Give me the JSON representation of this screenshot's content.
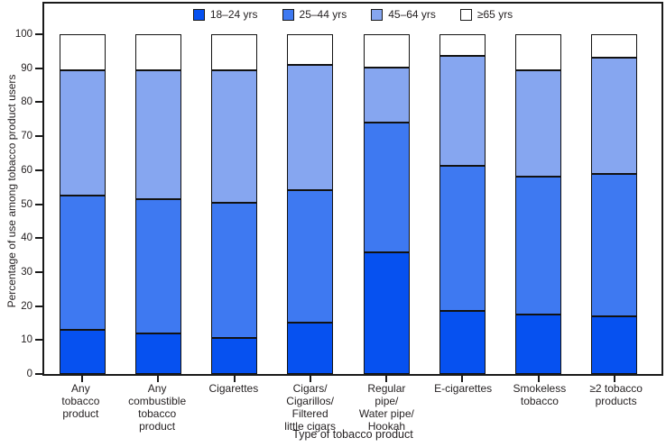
{
  "chart_data": {
    "type": "bar",
    "stacked": true,
    "title": "",
    "xlabel": "Type of tobacco product",
    "ylabel": "Percentage of use among tobacco product users",
    "ylim": [
      0,
      100
    ],
    "yticks": [
      0,
      10,
      20,
      30,
      40,
      50,
      60,
      70,
      80,
      90,
      100
    ],
    "grid": false,
    "legend_position": "top-center",
    "bar_border_color": "#121212",
    "text_color": "#231f20",
    "categories": [
      "Any tobacco product",
      "Any combustible tobacco product",
      "Cigarettes",
      "Cigars/Cigarillos/Filtered little cigars",
      "Regular pipe/Water pipe/Hookah",
      "E-cigarettes",
      "Smokeless tobacco",
      "≥2 tobacco products"
    ],
    "category_label_lines": [
      [
        "Any",
        "tobacco",
        "product"
      ],
      [
        "Any",
        "combustible",
        "tobacco",
        "product"
      ],
      [
        "Cigarettes"
      ],
      [
        "Cigars/",
        "Cigarillos/",
        "Filtered",
        "little cigars"
      ],
      [
        "Regular",
        "pipe/",
        "Water pipe/",
        "Hookah"
      ],
      [
        "E-cigarettes"
      ],
      [
        "Smokeless",
        "tobacco"
      ],
      [
        "≥2 tobacco",
        "products"
      ]
    ],
    "series": [
      {
        "name": "18–24 yrs",
        "color": "#0651F0",
        "values": [
          13.0,
          12.0,
          10.5,
          15.0,
          35.8,
          18.5,
          17.5,
          17.0
        ]
      },
      {
        "name": "25–44 yrs",
        "color": "#3E79F1",
        "values": [
          39.5,
          39.5,
          40.0,
          39.0,
          38.2,
          42.8,
          40.7,
          41.8
        ]
      },
      {
        "name": "45–64 yrs",
        "color": "#86A6F0",
        "values": [
          37.0,
          37.8,
          38.9,
          37.0,
          16.2,
          32.4,
          31.3,
          34.2
        ]
      },
      {
        "name": "≥65 yrs",
        "color": "#FFFFFF",
        "values": [
          10.5,
          10.7,
          10.6,
          9.0,
          9.8,
          6.3,
          10.5,
          7.0
        ]
      }
    ]
  }
}
